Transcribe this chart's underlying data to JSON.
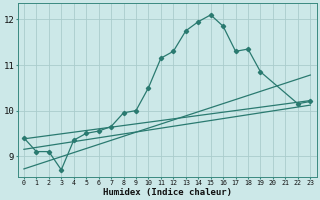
{
  "xlabel": "Humidex (Indice chaleur)",
  "bg_color": "#cce8e8",
  "grid_color": "#aacccc",
  "line_color": "#2a7a70",
  "xlim_min": -0.5,
  "xlim_max": 23.5,
  "ylim_min": 8.55,
  "ylim_max": 12.35,
  "yticks": [
    9,
    10,
    11,
    12
  ],
  "xticks": [
    0,
    1,
    2,
    3,
    4,
    5,
    6,
    7,
    8,
    9,
    10,
    11,
    12,
    13,
    14,
    15,
    16,
    17,
    18,
    19,
    20,
    21,
    22,
    23
  ],
  "jagged_x": [
    0,
    1,
    2,
    3,
    4,
    5,
    6,
    7,
    8,
    9,
    10,
    11,
    12,
    13,
    14,
    15,
    16,
    17,
    18,
    19,
    22,
    23
  ],
  "jagged_y": [
    9.4,
    9.1,
    9.1,
    8.7,
    9.35,
    9.5,
    9.55,
    9.65,
    9.95,
    10.0,
    10.5,
    11.15,
    11.3,
    11.75,
    11.95,
    12.1,
    11.85,
    11.3,
    11.35,
    10.85,
    10.15,
    10.2
  ],
  "line1_x": [
    0,
    23
  ],
  "line1_y": [
    9.38,
    10.22
  ],
  "line2_x": [
    0,
    23
  ],
  "line2_y": [
    9.15,
    10.12
  ],
  "line3_x": [
    0,
    23
  ],
  "line3_y": [
    8.72,
    10.78
  ]
}
